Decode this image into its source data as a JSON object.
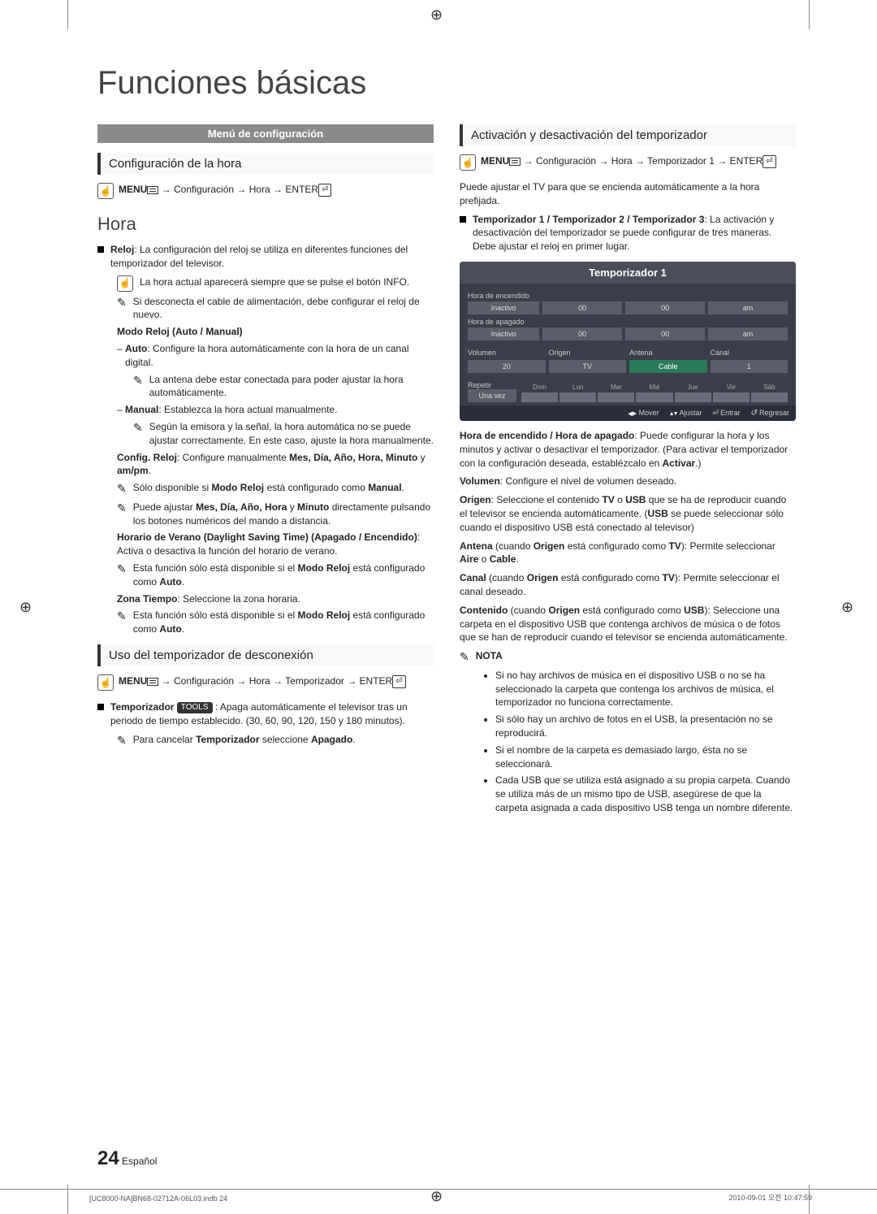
{
  "page": {
    "title": "Funciones básicas",
    "number": "24",
    "lang": "Español",
    "footer_left": "[UC8000-NA]BN68-02712A-06L03.indb   24",
    "footer_right": "2010-09-01   오전 10:47:59"
  },
  "left": {
    "banner": "Menú de configuración",
    "sub1": "Configuración de la hora",
    "nav1_menu": "MENU",
    "nav1_path": " → Configuración → Hora → ENTER",
    "h2": "Hora",
    "reloj_label": "Reloj",
    "reloj_text": ": La configuración del reloj se utiliza en diferentes funciones del temporizador del televisor.",
    "info_note": "La hora actual aparecerá siempre que se pulse el botón INFO.",
    "disconnect_note": "Si desconecta el cable de alimentación, debe configurar el reloj de nuevo.",
    "modo_reloj": "Modo Reloj (Auto / Manual)",
    "auto_label": "Auto",
    "auto_text": ": Configure la hora automáticamente con la hora de un canal digital.",
    "antena_note": "La antena debe estar conectada para poder ajustar la hora automáticamente.",
    "manual_label": "Manual",
    "manual_text": ": Establezca la hora actual manualmente.",
    "manual_note": "Según la emisora y la señal, la hora automática no se puede ajustar correctamente. En este caso, ajuste la hora manualmente.",
    "config_reloj_label": "Config. Reloj",
    "config_reloj_text": ": Configure manualmente ",
    "config_reloj_bold": "Mes, Día, Año, Hora, Minuto",
    "config_reloj_y": " y ",
    "config_reloj_ampm": "am/pm",
    "solo_manual": "Sólo disponible si ",
    "solo_manual_bold": "Modo Reloj",
    "solo_manual_end": " está configurado como ",
    "solo_manual_bold2": "Manual",
    "ajustar_note": "Puede ajustar ",
    "ajustar_bold": "Mes, Día, Año, Hora",
    "ajustar_y": " y ",
    "ajustar_bold2": "Minuto",
    "ajustar_end": " directamente pulsando los botones numéricos del mando a distancia.",
    "dst_label": "Horario de Verano (Daylight Saving Time) (Apagado / Encendido)",
    "dst_text": ": Activa o desactiva la función del horario de verano.",
    "dst_note": "Esta función sólo está disponible si el ",
    "dst_note_bold": "Modo Reloj",
    "dst_note_mid": " está configurado como ",
    "dst_note_bold2": "Auto",
    "zona_label": "Zona Tiempo",
    "zona_text": ": Seleccione la zona horaria.",
    "zona_note": "Esta función sólo está disponible si el ",
    "sub2": "Uso del temporizador de desconexión",
    "nav2_menu": "MENU",
    "nav2_path": " → Configuración → Hora → Temporizador → ENTER",
    "temp_label": "Temporizador ",
    "tools": "TOOLS",
    "temp_text": " : Apaga automáticamente el televisor tras un periodo de tiempo establecido. (30, 60, 90, 120, 150 y 180 minutos).",
    "temp_cancel": "Para cancelar ",
    "temp_cancel_bold": "Temporizador",
    "temp_cancel_mid": " seleccione ",
    "temp_cancel_bold2": "Apagado"
  },
  "right": {
    "sub1": "Activación y desactivación del temporizador",
    "nav1_menu": "MENU",
    "nav1_path": " → Configuración → Hora → Temporizador 1 → ENTER",
    "intro": "Puede ajustar el TV para que se encienda automáticamente a la hora prefijada.",
    "timers_label": "Temporizador 1 / Temporizador 2 / Temporizador 3",
    "timers_text": ": La activación y desactivación del temporizador se puede configurar de tres maneras. Debe ajustar el reloj en primer lugar.",
    "panel": {
      "title": "Temporizador 1",
      "on_label": "Hora de encendido",
      "off_label": "Hora de apagado",
      "inactive": "Inactivo",
      "hh": "00",
      "mm": "00",
      "ampm": "am",
      "vol_label": "Volumen",
      "vol_val": "20",
      "origen_label": "Origen",
      "origen_val": "TV",
      "antena_label": "Antena",
      "antena_val": "Cable",
      "canal_label": "Canal",
      "canal_val": "1",
      "repetir_label": "Repetir",
      "repetir_val": "Una vez",
      "days": [
        "Dom",
        "Lun",
        "Mar",
        "Mié",
        "Jue",
        "Vie",
        "Sáb"
      ],
      "footer_mover": "Mover",
      "footer_ajustar": "Ajustar",
      "footer_entrar": "Entrar",
      "footer_regresar": "Regresar"
    },
    "hora_enc_label": "Hora de encendido / Hora de apagado",
    "hora_enc_text": ": Puede configurar la hora y los minutos y activar o desactivar el temporizador. (Para activar el temporizador con la configuración deseada, establézcalo en ",
    "hora_enc_bold": "Activar",
    "hora_enc_end": ".)",
    "vol_label": "Volumen",
    "vol_text": ": Configure el nivel de volumen deseado.",
    "origen_label": "Origen",
    "origen_text": ": Seleccione el contenido ",
    "origen_bold1": "TV",
    "origen_mid": " o ",
    "origen_bold2": "USB",
    "origen_text2": " que se ha de reproducir cuando el televisor se encienda automáticamente. (",
    "origen_bold3": "USB",
    "origen_text3": " se puede seleccionar sólo cuando el dispositivo USB está conectado al televisor)",
    "antena_label": "Antena",
    "antena_paren": " (cuando ",
    "antena_bold1": "Origen",
    "antena_mid": " está configurado como ",
    "antena_bold2": "TV",
    "antena_text": "): Permite seleccionar ",
    "antena_bold3": "Aire",
    "antena_o": " o ",
    "antena_bold4": "Cable",
    "canal_label": "Canal",
    "canal_text": "): Permite seleccionar el canal deseado.",
    "cont_label": "Contenido",
    "cont_bold2": "USB",
    "cont_text": "): Seleccione una carpeta en el dispositivo USB que contenga archivos de música o de fotos que se han de reproducir cuando el televisor se encienda automáticamente.",
    "nota_label": "NOTA",
    "notas": [
      "Si no hay archivos de música en el dispositivo USB o no se ha seleccionado la carpeta que contenga los archivos de música, el temporizador no funciona correctamente.",
      "Si sólo hay un archivo de fotos en el USB, la presentación no se reproducirá.",
      "Si el nombre de la carpeta es demasiado largo, ésta no se seleccionará.",
      "Cada USB que se utiliza está asignado a su propia carpeta. Cuando se utiliza más de un mismo tipo de USB, asegúrese de que la carpeta asignada a cada dispositivo USB tenga un nombre diferente."
    ]
  }
}
